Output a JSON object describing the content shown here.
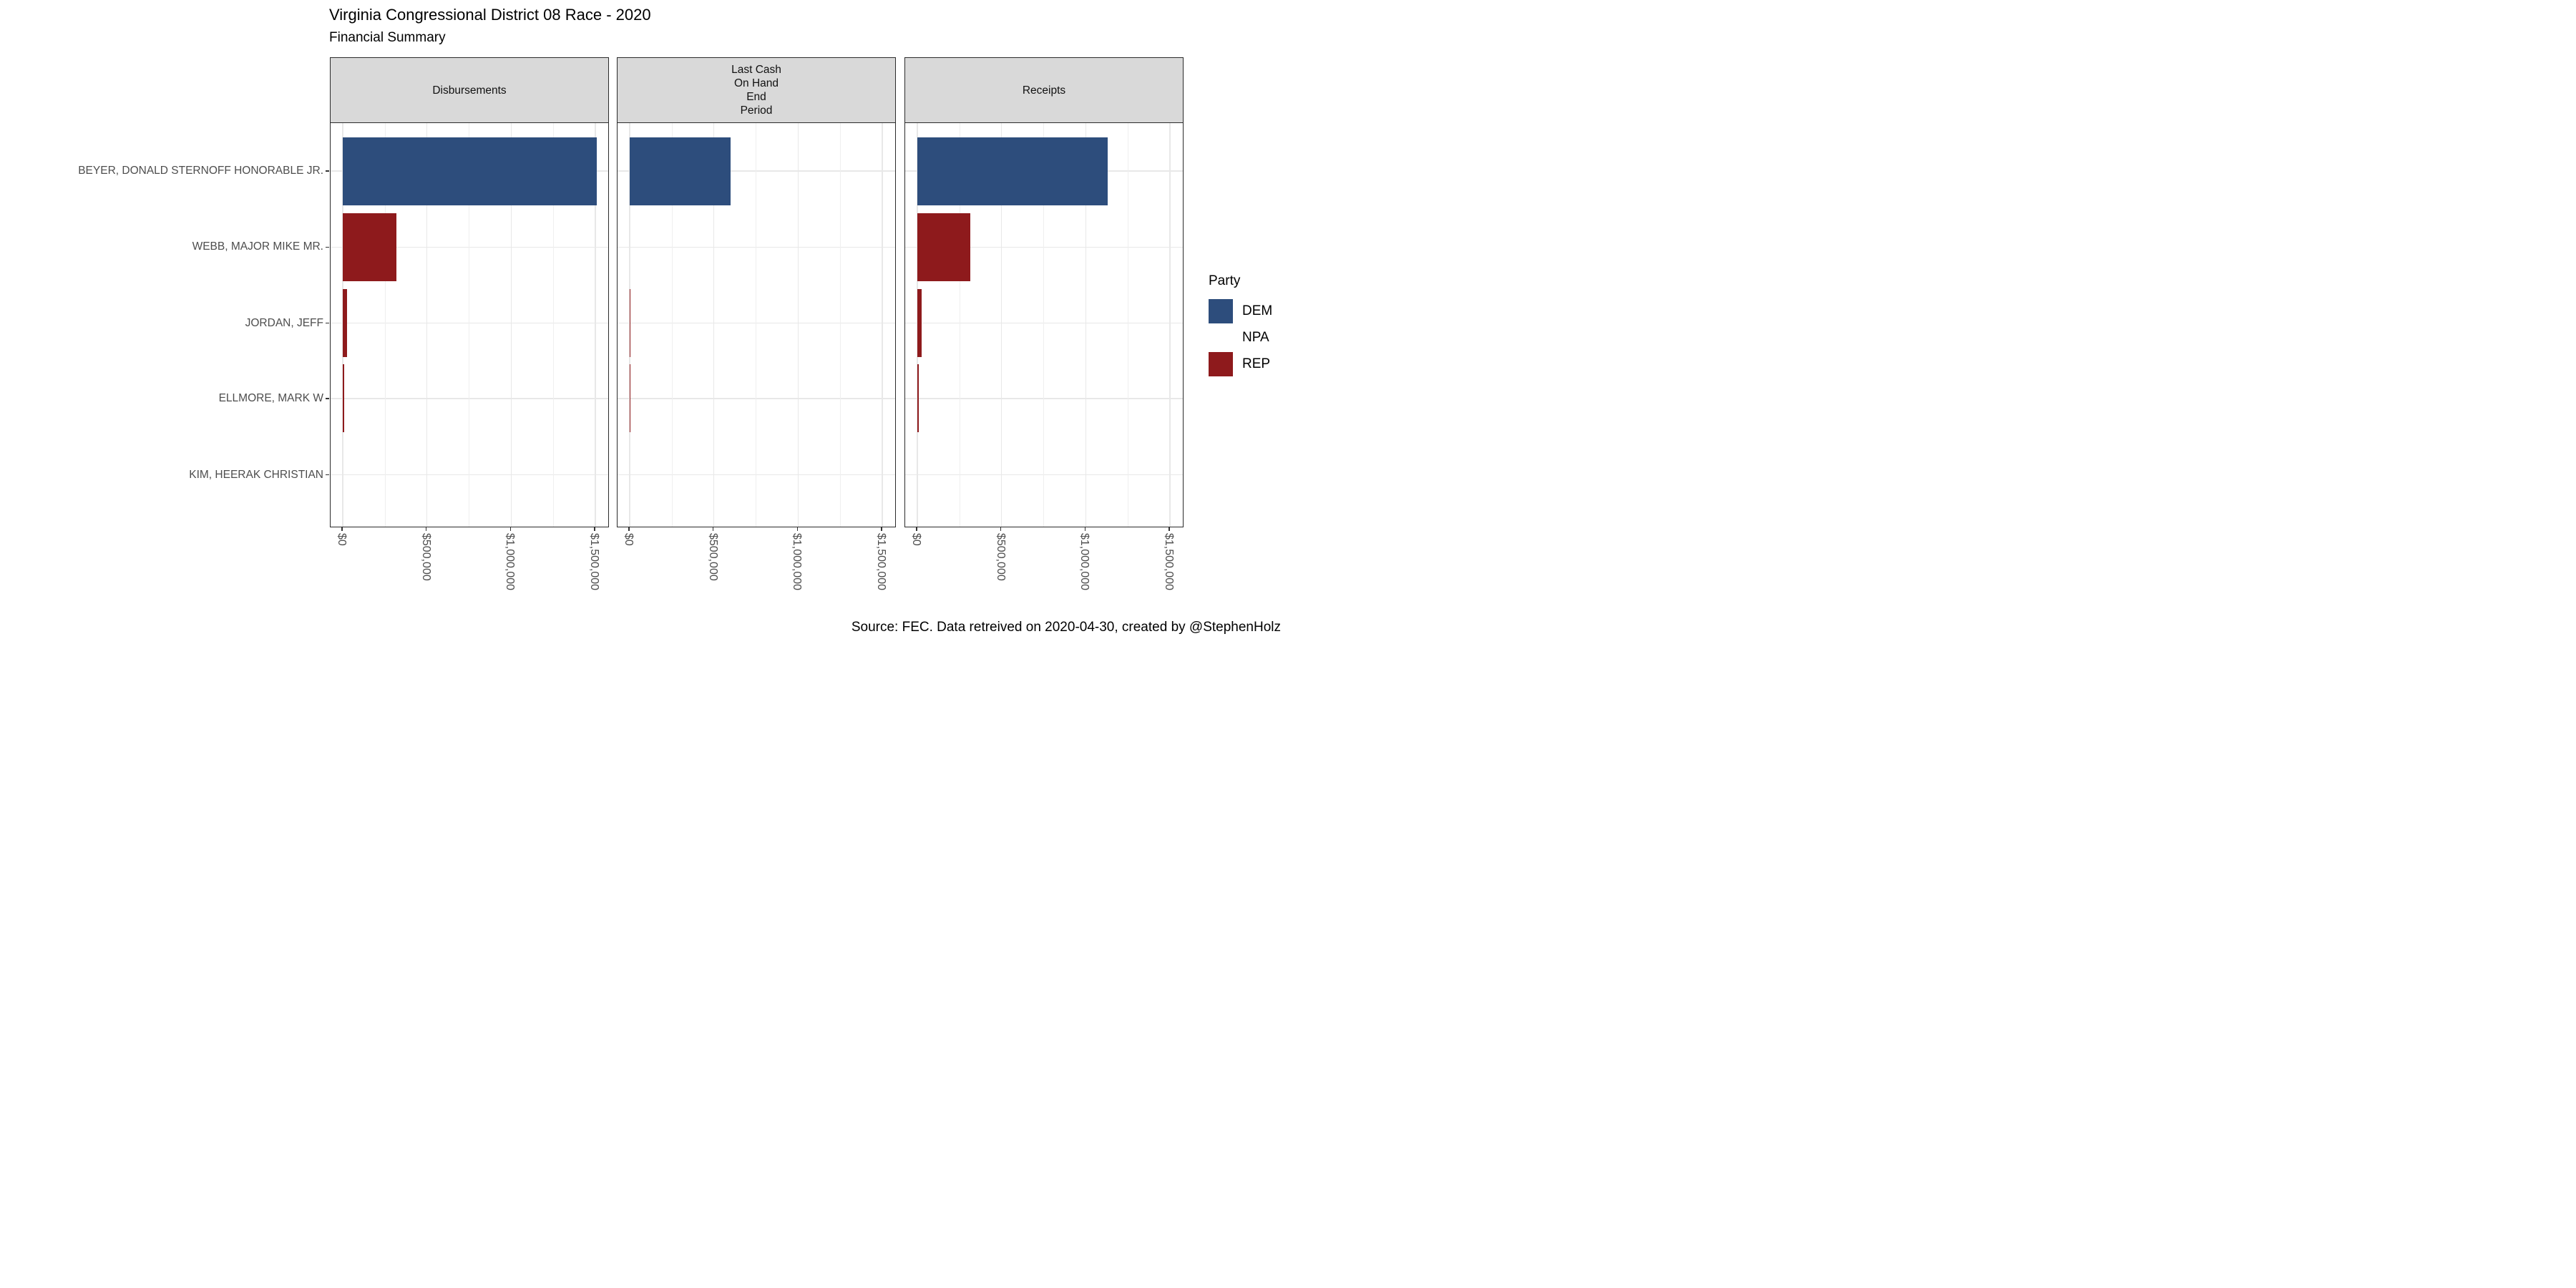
{
  "title": "Virginia Congressional District 08 Race - 2020",
  "subtitle": "Financial Summary",
  "caption": "Source: FEC. Data retreived on 2020-04-30, created by @StephenHolz",
  "legend": {
    "title": "Party",
    "entries": [
      {
        "label": "DEM",
        "color": "#2d4d7c"
      },
      {
        "label": "NPA",
        "color": "#ffffff"
      },
      {
        "label": "REP",
        "color": "#8e1a1c"
      }
    ]
  },
  "chart_data": {
    "type": "bar",
    "orientation": "horizontal",
    "title": "Virginia Congressional District 08 Race - 2020",
    "subtitle": "Financial Summary",
    "facets": [
      {
        "key": "disbursements",
        "label_lines": [
          "Disbursements"
        ]
      },
      {
        "key": "last-cash-on-hand-end-period",
        "label_lines": [
          "Last Cash",
          "On Hand",
          "End",
          "Period"
        ]
      },
      {
        "key": "receipts",
        "label_lines": [
          "Receipts"
        ]
      }
    ],
    "categories": [
      "BEYER, DONALD STERNOFF HONORABLE JR.",
      "WEBB, MAJOR MIKE MR.",
      "JORDAN, JEFF",
      "ELLMORE, MARK W",
      "KIM, HEERAK CHRISTIAN"
    ],
    "category_party": [
      "DEM",
      "REP",
      "REP",
      "REP",
      "NPA"
    ],
    "series": [
      {
        "name": "Disbursements",
        "values": [
          1510000,
          320000,
          26000,
          11000,
          0
        ]
      },
      {
        "name": "Last Cash On Hand End Period",
        "values": [
          601000,
          0,
          3000,
          2000,
          0
        ]
      },
      {
        "name": "Receipts",
        "values": [
          1130000,
          317000,
          25000,
          11000,
          0
        ]
      }
    ],
    "x_tick_labels": [
      "$0",
      "$500,000",
      "$1,000,000",
      "$1,500,000"
    ],
    "x_tick_values": [
      0,
      500000,
      1000000,
      1500000
    ],
    "x_minor_values": [
      250000,
      750000,
      1250000
    ],
    "xlim": [
      0,
      1570000
    ],
    "party_colors": {
      "DEM": "#2d4d7c",
      "NPA": "#ffffff",
      "REP": "#8e1a1c"
    },
    "grid": true,
    "legend_position": "right",
    "axis_text_color": "#4d4d4d",
    "strip_fill": "#d9d9d9"
  }
}
